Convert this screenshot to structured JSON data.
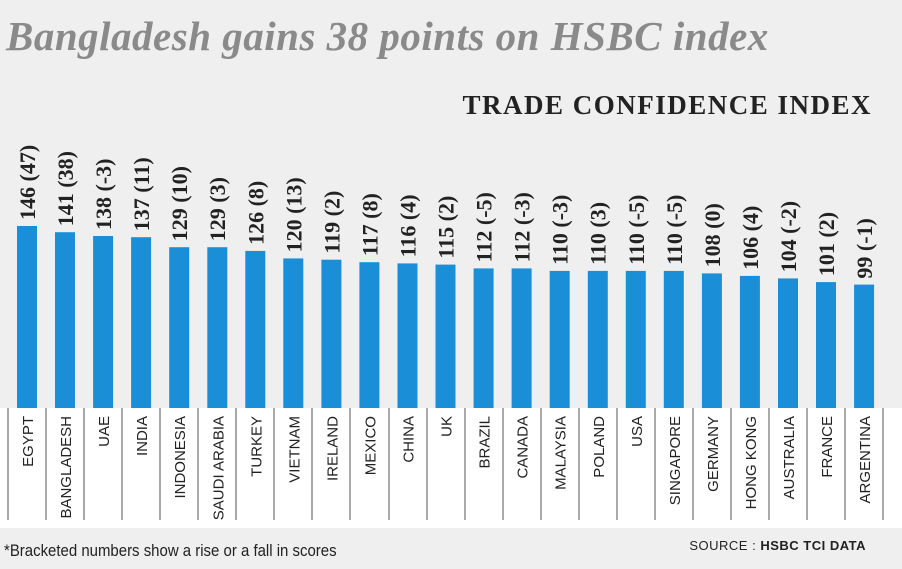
{
  "headline": "Bangladesh gains 38 points on HSBC index",
  "subhead": "TRADE CONFIDENCE INDEX",
  "footnote": "*Bracketed numbers show a rise or a fall in scores",
  "source_label": "SOURCE :",
  "source_value": "HSBC TCI DATA",
  "chart_data": {
    "type": "bar",
    "categories": [
      "EGYPT",
      "BANGLADESH",
      "UAE",
      "INDIA",
      "INDONESIA",
      "SAUDI ARABIA",
      "TURKEY",
      "VIETNAM",
      "IRELAND",
      "MEXICO",
      "CHINA",
      "UK",
      "BRAZIL",
      "CANADA",
      "MALAYSIA",
      "POLAND",
      "USA",
      "SINGAPORE",
      "GERMANY",
      "HONG KONG",
      "AUSTRALIA",
      "FRANCE",
      "ARGENTINA"
    ],
    "values": [
      146,
      141,
      138,
      137,
      129,
      129,
      126,
      120,
      119,
      117,
      116,
      115,
      112,
      112,
      110,
      110,
      110,
      110,
      108,
      106,
      104,
      101,
      99
    ],
    "changes": [
      47,
      38,
      -3,
      11,
      10,
      3,
      8,
      13,
      2,
      8,
      4,
      2,
      -5,
      -3,
      -3,
      3,
      -5,
      -5,
      0,
      4,
      -2,
      2,
      -1
    ],
    "data_labels": [
      "146 (47)",
      "141 (38)",
      "138 (-3)",
      "137 (11)",
      "129 (10)",
      "129 (3)",
      "126 (8)",
      "120 (13)",
      "119 (2)",
      "117 (8)",
      "116 (4)",
      "115 (2)",
      "112 (-5)",
      "112 (-3)",
      "110 (-3)",
      "110 (3)",
      "110 (-5)",
      "110 (-5)",
      "108 (0)",
      "106 (4)",
      "104 (-2)",
      "101 (2)",
      "99 (-1)"
    ],
    "bar_color": "#1a8fd8",
    "ylim": [
      0,
      150
    ]
  }
}
